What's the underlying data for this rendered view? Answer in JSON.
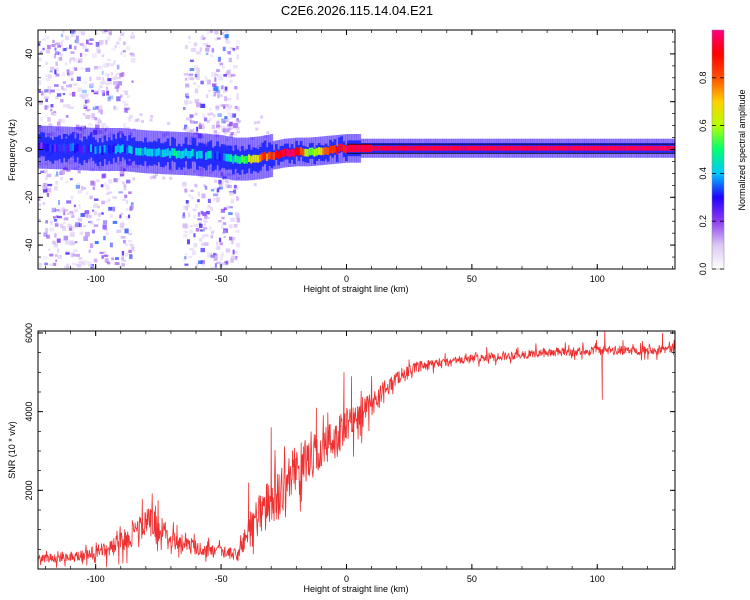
{
  "chart_data": [
    {
      "type": "heatmap",
      "title": "C2E6.2026.115.14.04.E21",
      "xlabel": "Height of straight line (km)",
      "ylabel": "Frequency (Hz)",
      "xlim": [
        -123,
        131
      ],
      "ylim": [
        -50,
        50
      ],
      "x_ticks": [
        -100,
        -50,
        0,
        50,
        100
      ],
      "y_ticks": [
        -40,
        -20,
        0,
        20,
        40
      ],
      "colorbar": {
        "label": "Normalized spectral amplitude",
        "range": [
          0,
          1
        ],
        "ticks": [
          0.0,
          0.2,
          0.4,
          0.6,
          0.8
        ],
        "colors": [
          "#ffffff",
          "#dcc8f4",
          "#8c3cf0",
          "#2000ff",
          "#00c8ff",
          "#00ff70",
          "#b4ff00",
          "#ffd000",
          "#ff5000",
          "#ff0000",
          "#ff0080"
        ]
      },
      "ridge": {
        "x": [
          -123,
          -110,
          -100,
          -90,
          -80,
          -70,
          -60,
          -50,
          -45,
          -40,
          -35,
          -30,
          -25,
          -20,
          -15,
          -10,
          -5,
          0,
          10,
          131
        ],
        "freq": [
          1,
          0.5,
          0,
          0,
          -1,
          -1.5,
          -2,
          -3,
          -4,
          -4,
          -3.5,
          -2.5,
          -1.5,
          -1,
          -1,
          -0.5,
          0,
          0.5,
          0.5,
          0.5
        ],
        "amplitude": [
          0.25,
          0.3,
          0.35,
          0.35,
          0.4,
          0.45,
          0.4,
          0.35,
          0.45,
          0.55,
          0.75,
          0.85,
          0.9,
          0.9,
          0.6,
          0.7,
          0.9,
          0.95,
          0.95,
          0.97
        ]
      },
      "noise_bands_km": [
        [
          -123,
          -85
        ],
        [
          -65,
          -43
        ]
      ]
    },
    {
      "type": "line",
      "xlabel": "Height of straight line (km)",
      "ylabel": "SNR (10 * v/v)",
      "xlim": [
        -123,
        131
      ],
      "ylim": [
        0,
        6050
      ],
      "x_ticks": [
        -100,
        -50,
        0,
        50,
        100
      ],
      "y_ticks": [
        2000,
        4000,
        6000
      ],
      "series": [
        {
          "name": "SNR",
          "color": "#ee3030",
          "envelope_x": [
            -123,
            -105,
            -95,
            -88,
            -82,
            -78,
            -75,
            -70,
            -65,
            -55,
            -47,
            -43,
            -40,
            -35,
            -30,
            -25,
            -20,
            -15,
            -10,
            -5,
            0,
            5,
            10,
            15,
            20,
            25,
            30,
            40,
            50,
            60,
            70,
            80,
            90,
            100,
            110,
            120,
            131
          ],
          "envelope_y": [
            250,
            350,
            500,
            750,
            1050,
            1250,
            1050,
            800,
            650,
            450,
            400,
            350,
            900,
            1400,
            1700,
            2100,
            2600,
            2800,
            3000,
            3300,
            3600,
            3900,
            4200,
            4550,
            4850,
            5050,
            5150,
            5250,
            5350,
            5400,
            5450,
            5500,
            5520,
            5550,
            5550,
            5580,
            5600
          ],
          "noise_amp_y": [
            150,
            200,
            300,
            400,
            500,
            550,
            500,
            400,
            300,
            250,
            200,
            250,
            600,
            800,
            900,
            900,
            800,
            800,
            800,
            800,
            700,
            600,
            450,
            350,
            250,
            200,
            200,
            180,
            170,
            160,
            160,
            160,
            160,
            170,
            170,
            170,
            170
          ],
          "spikes": [
            [
              -39,
              2200
            ],
            [
              -30,
              3600
            ],
            [
              -12,
              4100
            ],
            [
              -1,
              5000
            ],
            [
              2,
              4900
            ],
            [
              103,
              6050
            ],
            [
              102,
              4300
            ],
            [
              126,
              6000
            ]
          ]
        }
      ]
    }
  ]
}
